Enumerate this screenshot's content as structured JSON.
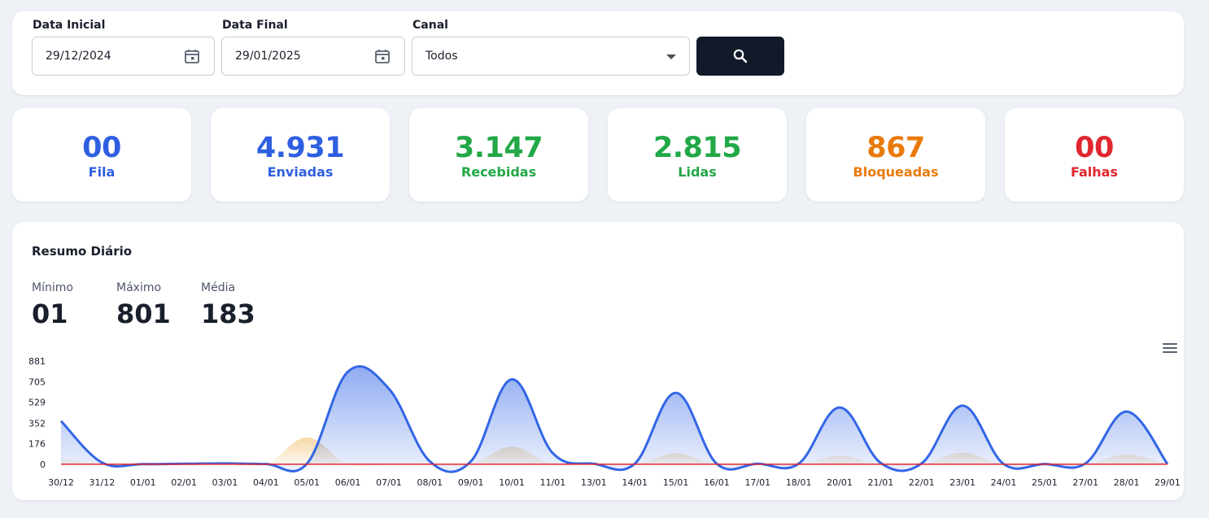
{
  "filters": {
    "start_date_label": "Data Inicial",
    "start_date_value": "29/12/2024",
    "end_date_label": "Data Final",
    "end_date_value": "29/01/2025",
    "channel_label": "Canal",
    "channel_value": "Todos",
    "search_icon": "search-icon",
    "calendar_icon": "calendar-icon"
  },
  "stats": [
    {
      "value": "00",
      "label": "Fila",
      "color": "#2f5fe0"
    },
    {
      "value": "4.931",
      "label": "Enviadas",
      "color": "#2f5fe0"
    },
    {
      "value": "3.147",
      "label": "Recebidas",
      "color": "#22a847"
    },
    {
      "value": "2.815",
      "label": "Lidas",
      "color": "#22a847"
    },
    {
      "value": "867",
      "label": "Bloqueadas",
      "color": "#ea7a0c"
    },
    {
      "value": "00",
      "label": "Falhas",
      "color": "#e0262e"
    }
  ],
  "summary": {
    "title": "Resumo Diário",
    "min_label": "Mínimo",
    "min_value": "01",
    "max_label": "Máximo",
    "max_value": "801",
    "avg_label": "Média",
    "avg_value": "183"
  },
  "chart_data": {
    "type": "area",
    "categories": [
      "30/12",
      "31/12",
      "01/01",
      "02/01",
      "03/01",
      "04/01",
      "05/01",
      "06/01",
      "07/01",
      "08/01",
      "09/01",
      "10/01",
      "11/01",
      "13/01",
      "14/01",
      "15/01",
      "16/01",
      "17/01",
      "18/01",
      "20/01",
      "21/01",
      "22/01",
      "23/01",
      "24/01",
      "25/01",
      "27/01",
      "28/01",
      "29/01"
    ],
    "yticks": [
      0,
      176,
      352,
      529,
      705,
      881
    ],
    "ylim": [
      0,
      881
    ],
    "series": [
      {
        "color": "#3366e6",
        "values": [
          370,
          15,
          2,
          5,
          8,
          3,
          5,
          790,
          645,
          25,
          25,
          725,
          95,
          5,
          5,
          610,
          5,
          5,
          5,
          485,
          12,
          8,
          500,
          3,
          3,
          8,
          450,
          3
        ]
      },
      {
        "color": "#f2c37a",
        "values": [
          50,
          0,
          0,
          0,
          0,
          0,
          230,
          0,
          0,
          0,
          0,
          150,
          0,
          0,
          0,
          95,
          0,
          0,
          0,
          75,
          0,
          0,
          100,
          0,
          0,
          0,
          85,
          0
        ]
      },
      {
        "color": "#e0262e",
        "values": [
          1,
          1,
          1,
          1,
          1,
          1,
          1,
          1,
          1,
          1,
          1,
          1,
          1,
          1,
          1,
          1,
          1,
          1,
          1,
          1,
          1,
          1,
          1,
          1,
          1,
          1,
          1,
          1
        ]
      }
    ],
    "grid": false,
    "menu_icon": "hamburger-menu-icon"
  }
}
